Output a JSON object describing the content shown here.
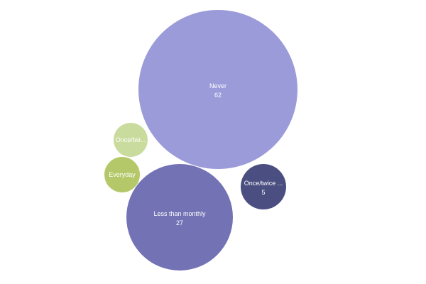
{
  "chart_data": {
    "type": "bubble",
    "bubbles": [
      {
        "label": "Never",
        "value": 62,
        "value_label": "62",
        "color": "#9b9bda"
      },
      {
        "label": "Less than monthly",
        "value": 27,
        "value_label": "27",
        "color": "#7272b4"
      },
      {
        "label": "Once/twice ...",
        "value": 5,
        "value_label": "5",
        "color": "#4a4e80"
      },
      {
        "label": "Once/twi...",
        "value": null,
        "value_label": "",
        "color": "#c9db9d"
      },
      {
        "label": "Everyday",
        "value": null,
        "value_label": "",
        "color": "#b4c869"
      }
    ]
  }
}
